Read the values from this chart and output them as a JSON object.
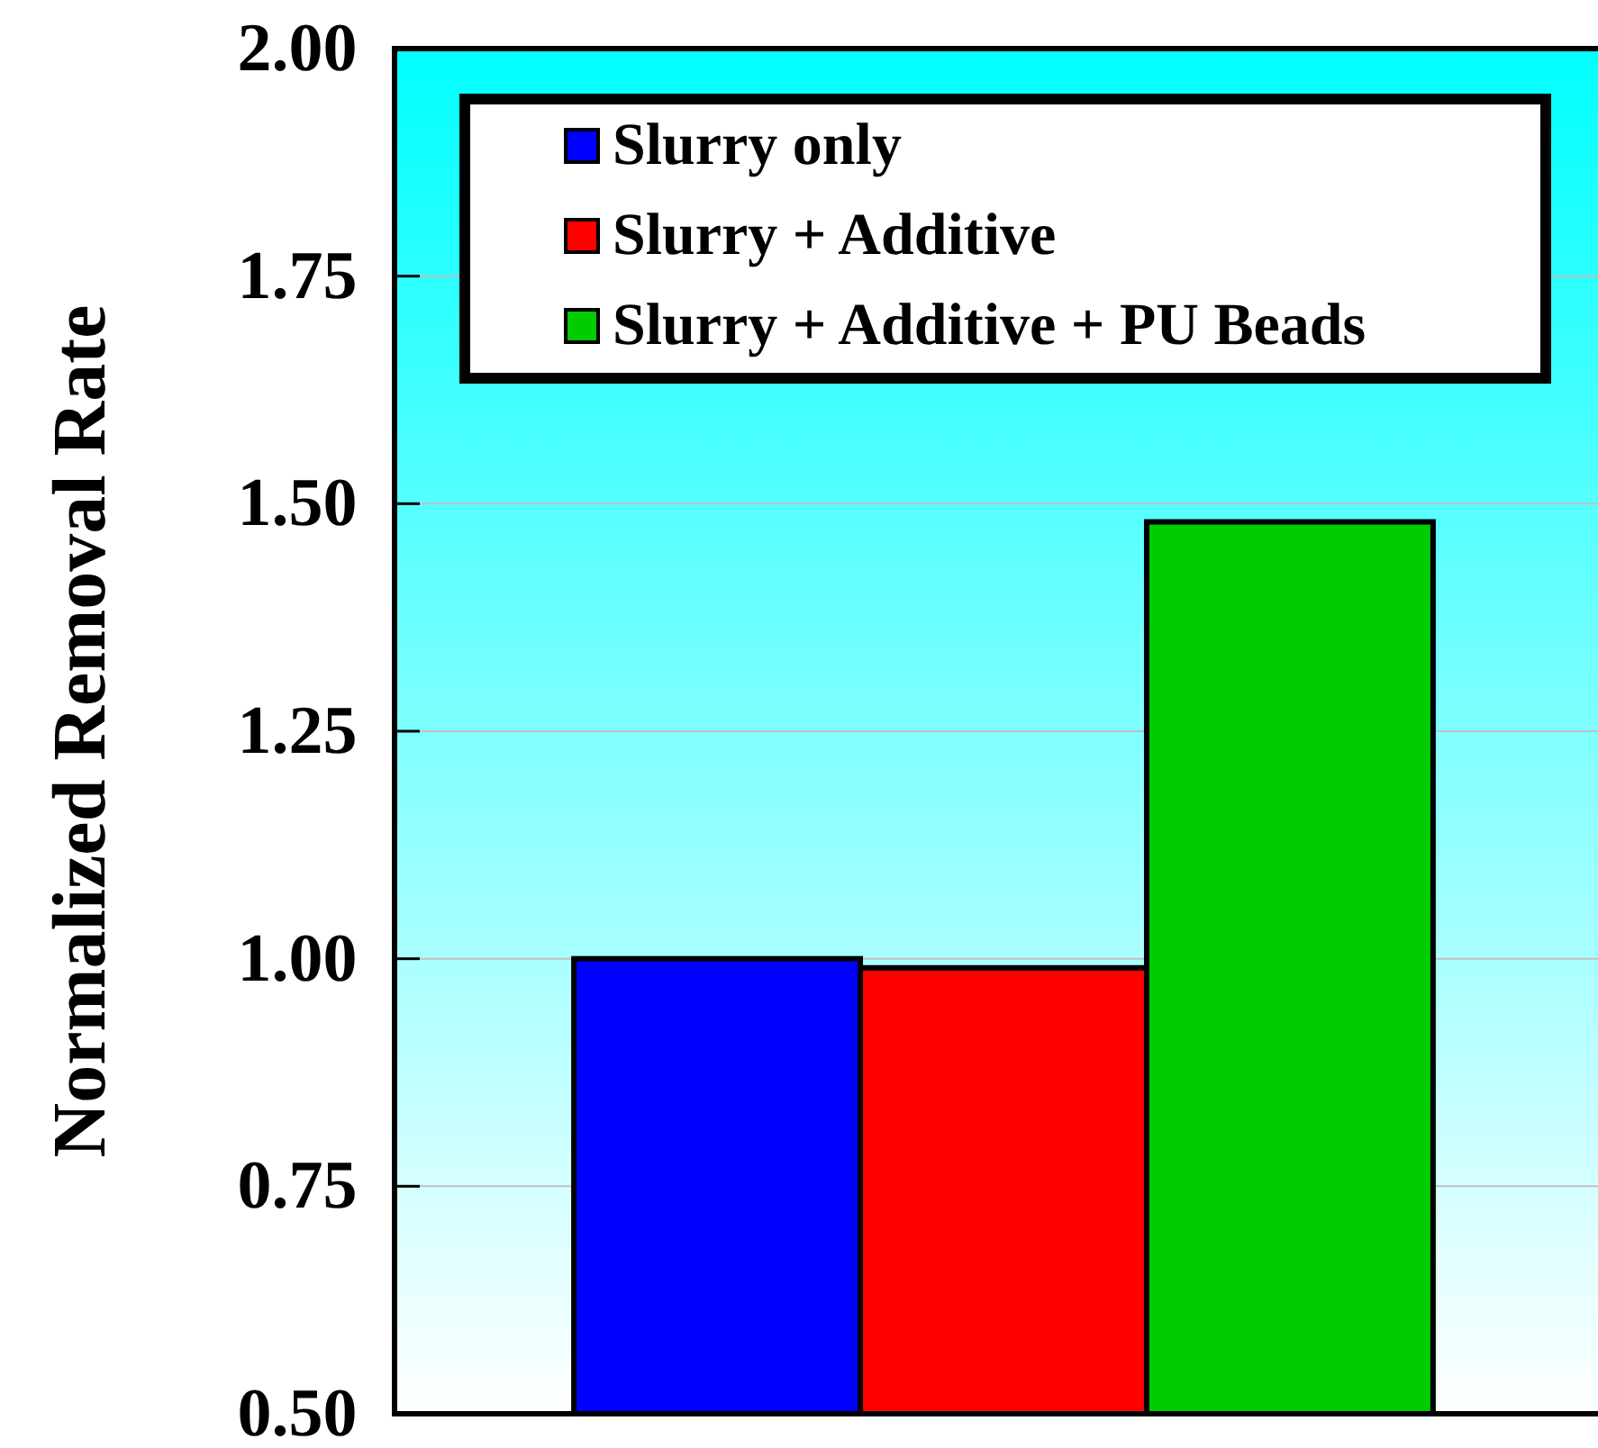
{
  "chart_data": {
    "type": "bar",
    "ylabel": "Normalized Removal Rate",
    "categories": [
      null
    ],
    "series": [
      {
        "name": "Slurry only",
        "color": "#0000ff",
        "values": [
          1.0
        ]
      },
      {
        "name": "Slurry + Additive",
        "color": "#ff0000",
        "values": [
          0.99
        ]
      },
      {
        "name": "Slurry + Additive + PU Beads",
        "color": "#00cc00",
        "values": [
          1.48
        ]
      }
    ],
    "ylim": [
      0.5,
      2.0
    ],
    "yticks": [
      {
        "value": 0.5,
        "label": "0.50"
      },
      {
        "value": 0.75,
        "label": "0.75"
      },
      {
        "value": 1.0,
        "label": "1.00"
      },
      {
        "value": 1.25,
        "label": "1.25"
      },
      {
        "value": 1.5,
        "label": "1.50"
      },
      {
        "value": 1.75,
        "label": "1.75"
      },
      {
        "value": 2.0,
        "label": "2.00"
      }
    ],
    "grid": "y",
    "legend": "top"
  }
}
